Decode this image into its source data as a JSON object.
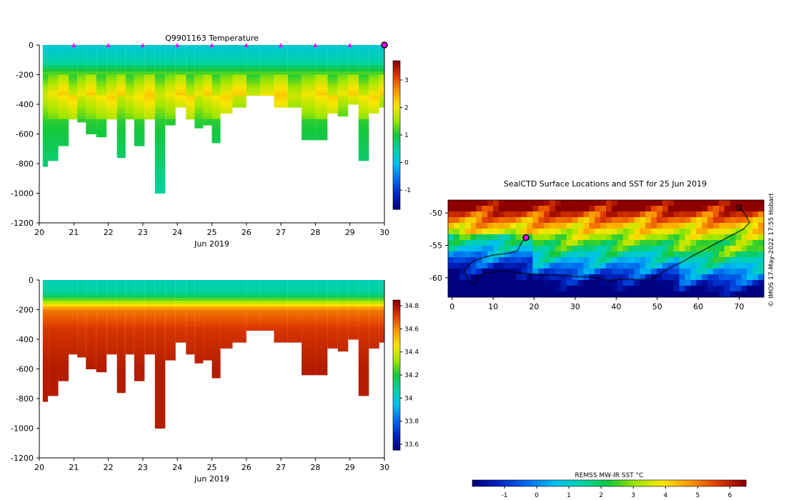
{
  "chart_data": [
    {
      "type": "heatmap",
      "title": "Q9901163  Temperature",
      "xlabel": "Jun 2019",
      "ylabel": "",
      "x_ticks": [
        "20",
        "21",
        "22",
        "23",
        "24",
        "25",
        "26",
        "27",
        "28",
        "29",
        "30"
      ],
      "y_ticks": [
        "0",
        "-200",
        "-400",
        "-600",
        "-800",
        "-1000",
        "-1200"
      ],
      "xlim": [
        20,
        30
      ],
      "ylim": [
        -1200,
        0
      ],
      "colorbar": {
        "min": -1.7,
        "max": 3.7,
        "ticks": [
          "3",
          "2",
          "1",
          "0",
          "-1"
        ],
        "tick_values": [
          3,
          2,
          1,
          0,
          -1
        ]
      },
      "surface_markers_x": [
        21,
        22,
        23,
        24,
        25,
        26,
        27,
        28,
        29,
        30
      ],
      "profile_max_depths": [
        {
          "x": 20.1,
          "depth": -810
        },
        {
          "x": 20.4,
          "depth": -775
        },
        {
          "x": 20.7,
          "depth": -675
        },
        {
          "x": 21.0,
          "depth": -495
        },
        {
          "x": 21.2,
          "depth": -520
        },
        {
          "x": 21.5,
          "depth": -600
        },
        {
          "x": 21.8,
          "depth": -610
        },
        {
          "x": 22.1,
          "depth": -500
        },
        {
          "x": 22.4,
          "depth": -750
        },
        {
          "x": 22.6,
          "depth": -490
        },
        {
          "x": 22.9,
          "depth": -670
        },
        {
          "x": 23.2,
          "depth": -500
        },
        {
          "x": 23.5,
          "depth": -985
        },
        {
          "x": 23.8,
          "depth": -530
        },
        {
          "x": 24.1,
          "depth": -420
        },
        {
          "x": 24.4,
          "depth": -500
        },
        {
          "x": 24.6,
          "depth": -545
        },
        {
          "x": 24.9,
          "depth": -530
        },
        {
          "x": 25.1,
          "depth": -660
        },
        {
          "x": 25.4,
          "depth": -455
        },
        {
          "x": 25.8,
          "depth": -415
        },
        {
          "x": 26.2,
          "depth": -335
        },
        {
          "x": 26.6,
          "depth": -335
        },
        {
          "x": 27.0,
          "depth": -410
        },
        {
          "x": 27.4,
          "depth": -410
        },
        {
          "x": 27.8,
          "depth": -625
        },
        {
          "x": 28.2,
          "depth": -625
        },
        {
          "x": 28.5,
          "depth": -460
        },
        {
          "x": 28.8,
          "depth": -480
        },
        {
          "x": 29.1,
          "depth": -395
        },
        {
          "x": 29.4,
          "depth": -770
        },
        {
          "x": 29.7,
          "depth": -455
        },
        {
          "x": 30.0,
          "depth": -415
        }
      ]
    },
    {
      "type": "heatmap",
      "title": "",
      "xlabel": "Jun 2019",
      "ylabel": "",
      "x_ticks": [
        "20",
        "21",
        "22",
        "23",
        "24",
        "25",
        "26",
        "27",
        "28",
        "29",
        "30"
      ],
      "y_ticks": [
        "0",
        "-200",
        "-400",
        "-600",
        "-800",
        "-1000",
        "-1200"
      ],
      "xlim": [
        20,
        30
      ],
      "ylim": [
        -1200,
        0
      ],
      "colorbar": {
        "min": 33.55,
        "max": 34.85,
        "ticks": [
          "34.8",
          "34.6",
          "34.4",
          "34.2",
          "34",
          "33.8",
          "33.6"
        ],
        "tick_values": [
          34.8,
          34.6,
          34.4,
          34.2,
          34.0,
          33.8,
          33.6
        ]
      }
    },
    {
      "type": "heatmap",
      "title": "SealCTD Surface Locations and SST for 25 Jun 2019",
      "xlabel": "",
      "ylabel": "",
      "x_ticks": [
        "0",
        "10",
        "20",
        "30",
        "40",
        "50",
        "60",
        "70"
      ],
      "y_ticks": [
        "-50",
        "-55",
        "-60"
      ],
      "xlim": [
        -1,
        76
      ],
      "ylim": [
        -63,
        -48
      ],
      "current_position": {
        "lon": 18,
        "lat": -53.8
      },
      "track": [
        [
          70,
          -49.2
        ],
        [
          71.5,
          -50.2
        ],
        [
          72.5,
          -51.5
        ],
        [
          71,
          -52.5
        ],
        [
          68,
          -53.5
        ],
        [
          65,
          -54.5
        ],
        [
          62,
          -55.5
        ],
        [
          59,
          -56.5
        ],
        [
          56,
          -57.6
        ],
        [
          53,
          -58.5
        ],
        [
          51,
          -59.3
        ],
        [
          49,
          -60.1
        ],
        [
          46,
          -60.3
        ],
        [
          42,
          -60.2
        ],
        [
          38,
          -60.4
        ],
        [
          34,
          -59.9
        ],
        [
          30,
          -59.8
        ],
        [
          26,
          -59.6
        ],
        [
          22,
          -59.5
        ],
        [
          17,
          -59.3
        ],
        [
          12,
          -59.0
        ],
        [
          8,
          -59.3
        ],
        [
          6,
          -60.0
        ],
        [
          5.5,
          -61.0
        ],
        [
          4,
          -60.5
        ],
        [
          3,
          -59.0
        ],
        [
          4,
          -58.0
        ],
        [
          6,
          -57.2
        ],
        [
          10,
          -56.5
        ],
        [
          14,
          -56.2
        ],
        [
          16,
          -55.8
        ],
        [
          17,
          -54.5
        ],
        [
          18,
          -53.8
        ]
      ],
      "colorbar": {
        "label": "REMSS MW-IR SST °C",
        "min": -2,
        "max": 6.5,
        "ticks": [
          "-1",
          "0",
          "1",
          "2",
          "3",
          "4",
          "5",
          "6"
        ],
        "tick_values": [
          -1,
          0,
          1,
          2,
          3,
          4,
          5,
          6
        ]
      },
      "credit": "© IMOS 17-May-2022 17:55 Hobart"
    }
  ]
}
